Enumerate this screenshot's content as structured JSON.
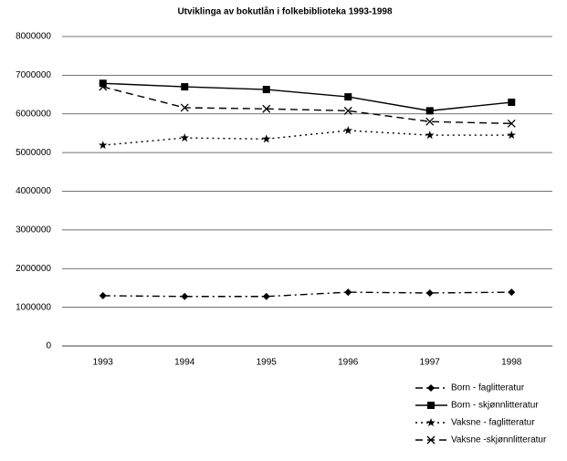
{
  "chart_data": {
    "type": "line",
    "title": "Utviklinga av bokutlån i folkebiblioteka 1993-1998",
    "categories": [
      "1993",
      "1994",
      "1995",
      "1996",
      "1997",
      "1998"
    ],
    "series": [
      {
        "name": "Born - faglitteratur",
        "color": "#000000",
        "marker": "diamond",
        "linestyle": "dashdot",
        "values": [
          1300000,
          1280000,
          1280000,
          1390000,
          1370000,
          1390000
        ]
      },
      {
        "name": "Born - skjønnlitteratur",
        "color": "#000000",
        "marker": "square",
        "linestyle": "solid",
        "values": [
          6790000,
          6700000,
          6630000,
          6440000,
          6080000,
          6300000
        ]
      },
      {
        "name": "Vaksne - faglitteratur",
        "color": "#000000",
        "marker": "star",
        "linestyle": "dotted",
        "values": [
          5190000,
          5380000,
          5350000,
          5570000,
          5450000,
          5450000
        ]
      },
      {
        "name": "Vaksne -skjønnlitteratur",
        "color": "#000000",
        "marker": "x",
        "linestyle": "dashed",
        "values": [
          6700000,
          6160000,
          6130000,
          6080000,
          5800000,
          5750000
        ]
      }
    ],
    "ylim": [
      0,
      8000000
    ],
    "yticks": [
      0,
      1000000,
      2000000,
      3000000,
      4000000,
      5000000,
      6000000,
      7000000,
      8000000
    ],
    "grid": true,
    "legend": "bottom-right"
  }
}
